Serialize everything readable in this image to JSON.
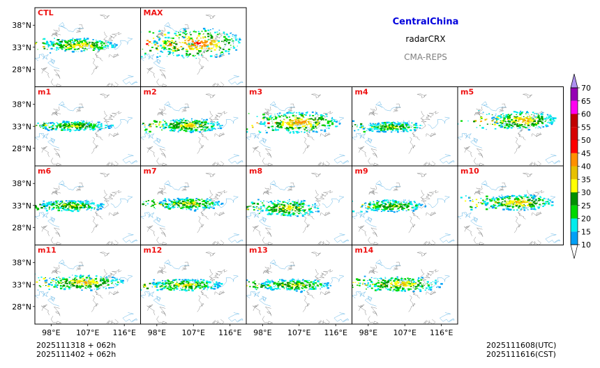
{
  "header": {
    "region": "CentralChina",
    "variable": "radarCRX",
    "system": "CMA-REPS"
  },
  "footer": {
    "init_lines": [
      "2025111318  +  062h",
      "2025111402  +  062h"
    ],
    "valid_lines": [
      "2025111608(UTC)",
      "2025111616(CST)"
    ]
  },
  "colors": {
    "panel_label": "#ee1111",
    "border": "#000000",
    "region_title": "#0000dd",
    "system_title": "#808080"
  },
  "chart_data": {
    "type": "heatmap",
    "title": "CentralChina radarCRX CMA-REPS",
    "panels": [
      {
        "label": "CTL",
        "core": [
          105,
          33.6
        ],
        "spread": [
          9,
          1.6
        ],
        "intensity": 0.6
      },
      {
        "label": "MAX",
        "core": [
          108,
          34
        ],
        "spread": [
          11,
          3.5
        ],
        "intensity": 1.0
      },
      {
        "label": "m1",
        "core": [
          104,
          33.2
        ],
        "spread": [
          9,
          1.2
        ],
        "intensity": 0.4
      },
      {
        "label": "m2",
        "core": [
          106,
          33.3
        ],
        "spread": [
          8,
          1.6
        ],
        "intensity": 0.6
      },
      {
        "label": "m3",
        "core": [
          107,
          34
        ],
        "spread": [
          10,
          2.5
        ],
        "intensity": 0.85
      },
      {
        "label": "m4",
        "core": [
          104,
          33
        ],
        "spread": [
          8,
          1.2
        ],
        "intensity": 0.35
      },
      {
        "label": "m5",
        "core": [
          110,
          34.5
        ],
        "spread": [
          8,
          2.2
        ],
        "intensity": 0.75
      },
      {
        "label": "m6",
        "core": [
          103,
          33
        ],
        "spread": [
          8,
          1.3
        ],
        "intensity": 0.45
      },
      {
        "label": "m7",
        "core": [
          106,
          33.5
        ],
        "spread": [
          8,
          1.4
        ],
        "intensity": 0.5
      },
      {
        "label": "m8",
        "core": [
          104,
          32.5
        ],
        "spread": [
          8,
          2
        ],
        "intensity": 0.5
      },
      {
        "label": "m9",
        "core": [
          104,
          33
        ],
        "spread": [
          8,
          1.4
        ],
        "intensity": 0.4
      },
      {
        "label": "m10",
        "core": [
          109,
          33.8
        ],
        "spread": [
          9,
          1.8
        ],
        "intensity": 0.7
      },
      {
        "label": "m11",
        "core": [
          106,
          33.6
        ],
        "spread": [
          10,
          1.8
        ],
        "intensity": 0.7
      },
      {
        "label": "m12",
        "core": [
          105,
          33
        ],
        "spread": [
          9,
          1.4
        ],
        "intensity": 0.55
      },
      {
        "label": "m13",
        "core": [
          106,
          33
        ],
        "spread": [
          9,
          1.4
        ],
        "intensity": 0.45
      },
      {
        "label": "m14",
        "core": [
          106,
          33.2
        ],
        "spread": [
          10,
          1.8
        ],
        "intensity": 0.65
      }
    ],
    "lon_range": [
      94,
      120
    ],
    "lat_range": [
      24,
      42
    ],
    "x_ticks": [
      "98°E",
      "107°E",
      "116°E"
    ],
    "x_tick_values": [
      98,
      107,
      116
    ],
    "y_ticks": [
      "38°N",
      "33°N",
      "28°N"
    ],
    "y_tick_values": [
      38,
      33,
      28
    ],
    "colorbar": {
      "levels": [
        10,
        15,
        20,
        25,
        30,
        35,
        40,
        45,
        50,
        55,
        60,
        65,
        70
      ],
      "labels": [
        "10",
        "15",
        "20",
        "25",
        "30",
        "35",
        "40",
        "45",
        "50",
        "55",
        "60",
        "65",
        "70"
      ],
      "colors": [
        "#01a0f6",
        "#00ecec",
        "#00d800",
        "#019000",
        "#ffff00",
        "#e7c000",
        "#ff9000",
        "#ff0000",
        "#d60000",
        "#c00000",
        "#ff00f0",
        "#9600b4",
        "#ad90f0"
      ],
      "extend": "both"
    }
  }
}
